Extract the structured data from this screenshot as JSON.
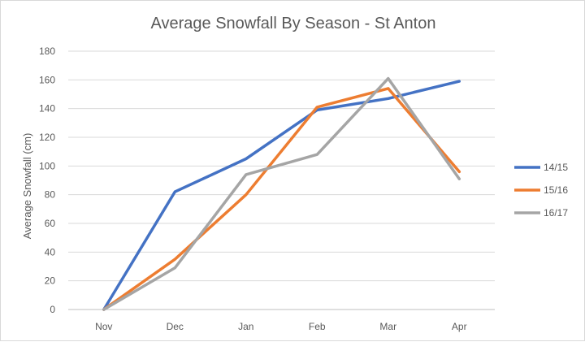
{
  "chart_data": {
    "type": "line",
    "title": "Average Snowfall By Season - St Anton",
    "xlabel": "",
    "ylabel": "Average Snowfall (cm)",
    "categories": [
      "Nov",
      "Dec",
      "Jan",
      "Feb",
      "Mar",
      "Apr"
    ],
    "ylim": [
      0,
      180
    ],
    "yticks": [
      "0",
      "20",
      "40",
      "60",
      "80",
      "100",
      "120",
      "140",
      "160",
      "180"
    ],
    "grid": true,
    "legend": "right",
    "series": [
      {
        "name": "14/15",
        "color": "#4472c4",
        "values": [
          0,
          82,
          105,
          139,
          147,
          159
        ]
      },
      {
        "name": "15/16",
        "color": "#ed7d31",
        "values": [
          0,
          35,
          80,
          141,
          154,
          96
        ]
      },
      {
        "name": "16/17",
        "color": "#a5a5a5",
        "values": [
          0,
          29,
          94,
          108,
          161,
          91
        ]
      }
    ]
  }
}
